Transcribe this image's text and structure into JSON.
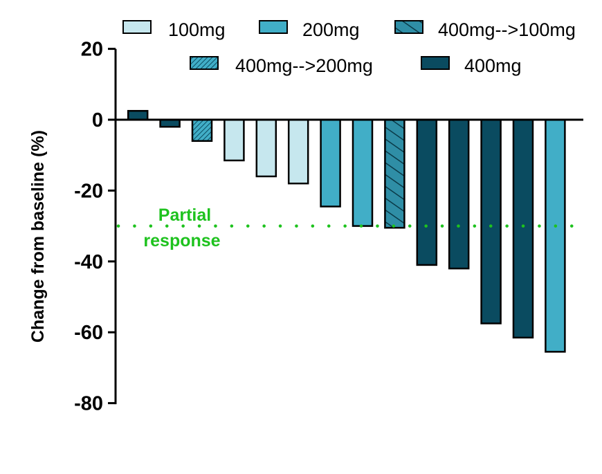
{
  "chart_data": {
    "type": "bar",
    "title": "",
    "xlabel": "",
    "ylabel": "Change from baseline (%)",
    "ylim": [
      -80,
      20
    ],
    "yticks": [
      20,
      0,
      -20,
      -40,
      -60,
      -80
    ],
    "ytick_labels": [
      "20",
      "0",
      "-20",
      "-40",
      "-60",
      "-80"
    ],
    "legend_position": "top",
    "series_names": [
      "100mg",
      "200mg",
      "400mg-->100mg",
      "400mg-->200mg",
      "400mg"
    ],
    "colors": {
      "100mg": "#c6e7ee",
      "200mg": "#41aec7",
      "400mg-->100mg": "#2f8ea6",
      "400mg-->200mg": "#41aec7",
      "400mg": "#0a4b60",
      "reference_line": "#1ec21e"
    },
    "bars": [
      {
        "group": "400mg",
        "value": 2.5
      },
      {
        "group": "400mg",
        "value": -2
      },
      {
        "group": "400mg-->200mg",
        "value": -6
      },
      {
        "group": "100mg",
        "value": -11.5
      },
      {
        "group": "100mg",
        "value": -16
      },
      {
        "group": "100mg",
        "value": -18
      },
      {
        "group": "200mg",
        "value": -24.5
      },
      {
        "group": "200mg",
        "value": -30
      },
      {
        "group": "400mg-->100mg",
        "value": -30.5
      },
      {
        "group": "400mg",
        "value": -41
      },
      {
        "group": "400mg",
        "value": -42
      },
      {
        "group": "400mg",
        "value": -57.5
      },
      {
        "group": "400mg",
        "value": -61.5
      },
      {
        "group": "200mg",
        "value": -65.5
      }
    ],
    "reference_line": {
      "value": -30,
      "label_line1": "Partial",
      "label_line2": "response",
      "style": "dotted"
    }
  }
}
